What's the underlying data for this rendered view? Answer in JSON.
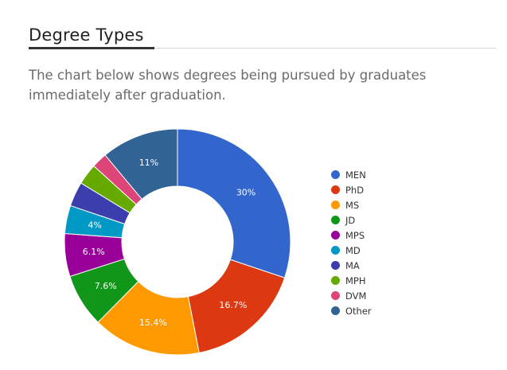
{
  "section": {
    "title": "Degree Types",
    "description": "The chart below shows degrees being pursued by graduates immediately after graduation."
  },
  "chart_data": {
    "type": "pie",
    "donut": true,
    "legend_position": "right",
    "categories": [
      "MEN",
      "PhD",
      "MS",
      "JD",
      "MPS",
      "MD",
      "MA",
      "MPH",
      "DVM",
      "Other"
    ],
    "values": [
      30,
      16.7,
      15.4,
      7.6,
      6.1,
      4,
      3.5,
      3,
      2.2,
      11
    ],
    "labels": [
      "30%",
      "16.7%",
      "15.4%",
      "7.6%",
      "6.1%",
      "4%",
      "",
      "",
      "",
      "11%"
    ],
    "colors": [
      "#3366cc",
      "#dc3912",
      "#ff9900",
      "#109618",
      "#990099",
      "#0099c6",
      "#3b3eac",
      "#66aa00",
      "#dd4477",
      "#316395"
    ]
  }
}
